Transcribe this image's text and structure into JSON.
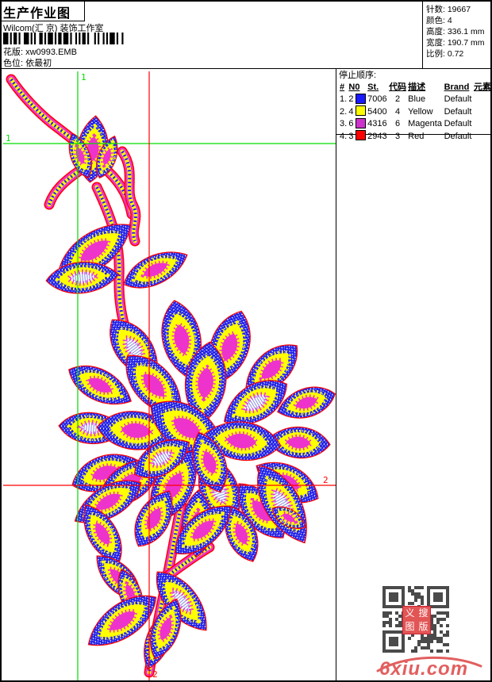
{
  "header": {
    "title": "生产作业图",
    "company": "Wilcom(汇 京) 装饰工作室",
    "pattern_line": "花版: xw0993.EMB",
    "colorway_line": "色位: 依最初",
    "stats": [
      {
        "label": "针数:",
        "value": "19667"
      },
      {
        "label": "颜色:",
        "value": "4"
      },
      {
        "label": "高度:",
        "value": "336.1 mm"
      },
      {
        "label": "宽度:",
        "value": "190.7 mm"
      },
      {
        "label": "比例:",
        "value": "0.72"
      }
    ]
  },
  "stop_sequence": {
    "title": "停止顺序:",
    "columns": [
      "#",
      "N0",
      "St.",
      "代码",
      "描述",
      "Brand",
      "元素"
    ],
    "rows": [
      {
        "seq": "1.",
        "needle": "2",
        "swatch": "#1a1aff",
        "st": "7006",
        "code": "2",
        "desc": "Blue",
        "brand": "Default",
        "element": ""
      },
      {
        "seq": "2.",
        "needle": "4",
        "swatch": "#ffff00",
        "st": "5400",
        "code": "4",
        "desc": "Yellow",
        "brand": "Default",
        "element": ""
      },
      {
        "seq": "3.",
        "needle": "6",
        "swatch": "#cc33cc",
        "st": "4316",
        "code": "6",
        "desc": "Magenta",
        "brand": "Default",
        "element": ""
      },
      {
        "seq": "4.",
        "needle": "3",
        "swatch": "#ff0000",
        "st": "2943",
        "code": "3",
        "desc": "Red",
        "brand": "Default",
        "element": ""
      }
    ]
  },
  "canvas": {
    "guide_green_label": "1",
    "guide_red_label": "2",
    "colors": {
      "stitch_blue": "#2323e8",
      "stitch_yellow": "#ffff00",
      "stitch_magenta": "#ee33cc",
      "outline_red": "#ff0000",
      "guide_green": "#00dd00",
      "guide_red": "#ff0000"
    }
  },
  "footer": {
    "logo_text": "6xiu.com",
    "seal_chars": [
      "义",
      "搜",
      "图",
      "版"
    ]
  }
}
